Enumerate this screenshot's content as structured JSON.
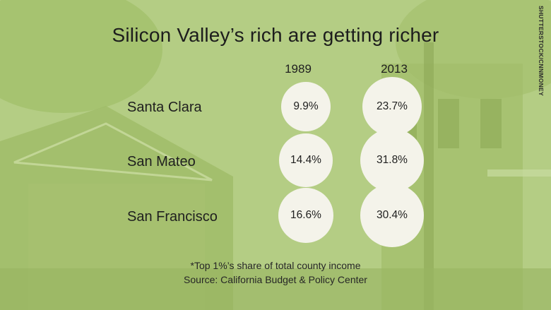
{
  "title": "Silicon Valley’s rich are getting richer",
  "credit": "SHUTTERSTOCK/CNNMONEY",
  "footnote": "*Top 1%’s share of total county income",
  "source": "Source: California Budget & Policy Center",
  "colors": {
    "background": "#aac573",
    "bubble": "#f4f3ea",
    "text": "#1f1f1f"
  },
  "chart_data": {
    "type": "table",
    "columns": [
      "1989",
      "2013"
    ],
    "rows": [
      {
        "county": "Santa Clara",
        "values": [
          9.9,
          23.7
        ],
        "labels": [
          "9.9%",
          "23.7%"
        ]
      },
      {
        "county": "San Mateo",
        "values": [
          14.4,
          31.8
        ],
        "labels": [
          "14.4%",
          "31.8%"
        ]
      },
      {
        "county": "San Francisco",
        "values": [
          16.6,
          30.4
        ],
        "labels": [
          "16.6%",
          "30.4%"
        ]
      }
    ],
    "unit": "%"
  }
}
